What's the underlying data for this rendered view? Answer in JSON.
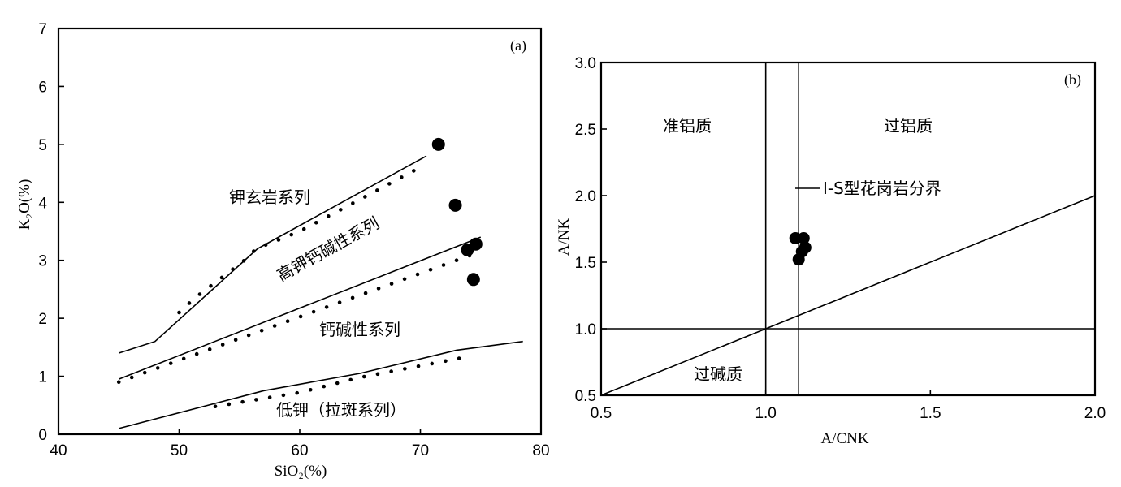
{
  "chart_data": [
    {
      "id": "a",
      "type": "scatter",
      "panel_label": "(a)",
      "xlabel": "SiO₂(%)",
      "ylabel": "K₂O(%)",
      "xlim": [
        40,
        80
      ],
      "ylim": [
        0,
        7
      ],
      "xticks": [
        40,
        50,
        60,
        70,
        80
      ],
      "yticks": [
        0,
        1,
        2,
        3,
        4,
        5,
        6,
        7
      ],
      "field_labels": [
        "钾玄岩系列",
        "高钾钙碱性系列",
        "钙碱性系列",
        "低钾（拉斑系列）"
      ],
      "boundaries": [
        {
          "name": "shoshonite / high-K calc-alkaline",
          "style": "solid",
          "points": [
            [
              45,
              1.4
            ],
            [
              48,
              1.6
            ],
            [
              56.5,
              3.2
            ],
            [
              70.5,
              4.8
            ]
          ]
        },
        {
          "name": "shoshonite / high-K calc-alkaline (dotted)",
          "style": "dotted",
          "points": [
            [
              50,
              2.1
            ],
            [
              51.3,
              2.35
            ],
            [
              55.3,
              2.98
            ],
            [
              56.4,
              3.2
            ],
            [
              60,
              3.5
            ],
            [
              65,
              4.05
            ],
            [
              69.5,
              4.55
            ]
          ]
        },
        {
          "name": "high-K / calc-alkaline",
          "style": "solid",
          "points": [
            [
              45,
              0.95
            ],
            [
              75,
              3.4
            ]
          ]
        },
        {
          "name": "high-K / calc-alkaline (dotted)",
          "style": "dotted",
          "points": [
            [
              45,
              0.9
            ],
            [
              75,
              3.15
            ]
          ]
        },
        {
          "name": "calc-alkaline / low-K",
          "style": "solid",
          "points": [
            [
              45,
              0.1
            ],
            [
              57,
              0.75
            ],
            [
              65,
              1.05
            ],
            [
              73,
              1.45
            ],
            [
              78.5,
              1.6
            ]
          ]
        },
        {
          "name": "calc-alkaline / low-K (dotted)",
          "style": "dotted",
          "points": [
            [
              53,
              0.48
            ],
            [
              60,
              0.72
            ],
            [
              65,
              0.98
            ],
            [
              70,
              1.18
            ],
            [
              73.5,
              1.32
            ]
          ]
        }
      ],
      "points": [
        {
          "x": 71.5,
          "y": 5.0
        },
        {
          "x": 72.9,
          "y": 3.95
        },
        {
          "x": 73.9,
          "y": 3.18
        },
        {
          "x": 74.6,
          "y": 3.28
        },
        {
          "x": 74.4,
          "y": 2.67
        }
      ]
    },
    {
      "id": "b",
      "type": "scatter",
      "panel_label": "(b)",
      "xlabel": "A/CNK",
      "ylabel": "A/NK",
      "xlim": [
        0.5,
        2.0
      ],
      "ylim": [
        0.5,
        3.0
      ],
      "xticks": [
        "0.5",
        "1.0",
        "1.5",
        "2.0"
      ],
      "yticks": [
        "0.5",
        "1.0",
        "1.5",
        "2.0",
        "2.5",
        "3.0"
      ],
      "field_labels": [
        "准铝质",
        "过铝质",
        "过碱质"
      ],
      "annotation": "I-S型花岗岩分界",
      "boundaries": [
        {
          "name": "A/CNK = 1.0",
          "points": [
            [
              1.0,
              0.5
            ],
            [
              1.0,
              3.0
            ]
          ]
        },
        {
          "name": "I-S boundary",
          "points": [
            [
              1.1,
              0.5
            ],
            [
              1.1,
              3.0
            ]
          ]
        },
        {
          "name": "A/NK = 1.0",
          "points": [
            [
              0.5,
              1.0
            ],
            [
              2.0,
              1.0
            ]
          ]
        },
        {
          "name": "A/NK = A/CNK",
          "points": [
            [
              0.5,
              0.5
            ],
            [
              2.0,
              2.0
            ]
          ]
        }
      ],
      "points": [
        {
          "x": 1.09,
          "y": 1.68
        },
        {
          "x": 1.115,
          "y": 1.68
        },
        {
          "x": 1.12,
          "y": 1.61
        },
        {
          "x": 1.11,
          "y": 1.58
        },
        {
          "x": 1.1,
          "y": 1.52
        }
      ]
    }
  ]
}
